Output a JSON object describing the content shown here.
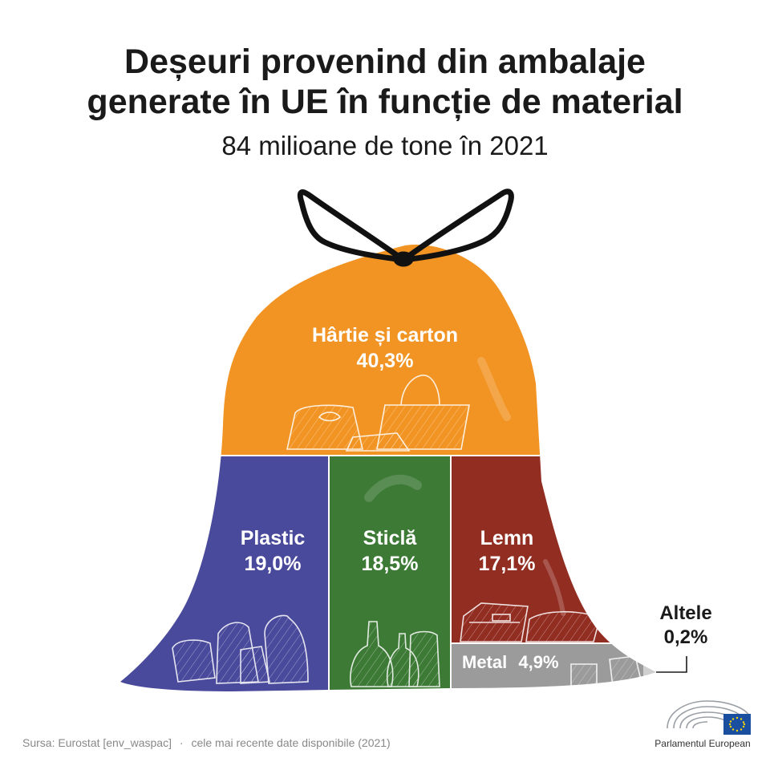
{
  "chart_data": {
    "type": "treemap",
    "title_line1": "Deșeuri provenind din ambalaje",
    "title_line2": "generate în UE în funcție de material",
    "subtitle": "84 milioane de tone în 2021",
    "segments": [
      {
        "name": "Hârtie și carton",
        "value": 40.3,
        "value_label": "40,3%",
        "color": "#f29423"
      },
      {
        "name": "Plastic",
        "value": 19.0,
        "value_label": "19,0%",
        "color": "#4a4a9c"
      },
      {
        "name": "Sticlă",
        "value": 18.5,
        "value_label": "18,5%",
        "color": "#3d7a36"
      },
      {
        "name": "Lemn",
        "value": 17.1,
        "value_label": "17,1%",
        "color": "#922d22"
      },
      {
        "name": "Metal",
        "value": 4.9,
        "value_label": "4,9%",
        "color": "#9b9b9b"
      },
      {
        "name": "Altele",
        "value": 0.2,
        "value_label": "0,2%",
        "color": "#cfcfcf"
      }
    ]
  },
  "footer": {
    "source_text": "Sursa: Eurostat [env_waspac]",
    "separator": "·",
    "note": "cele mai recente date disponibile (2021)",
    "logo_text": "Parlamentul European"
  },
  "icons": {
    "bag_tie": "bag-tie-icon",
    "paper": "paper-bags-icon",
    "plastic": "plastic-bottles-icon",
    "glass": "glass-bottles-icon",
    "wood": "wood-crates-icon",
    "metal": "metal-cans-icon",
    "logo": "european-parliament-logo-icon"
  },
  "colors": {
    "bag_tie": "#111111",
    "pattern": "#ffffff"
  }
}
